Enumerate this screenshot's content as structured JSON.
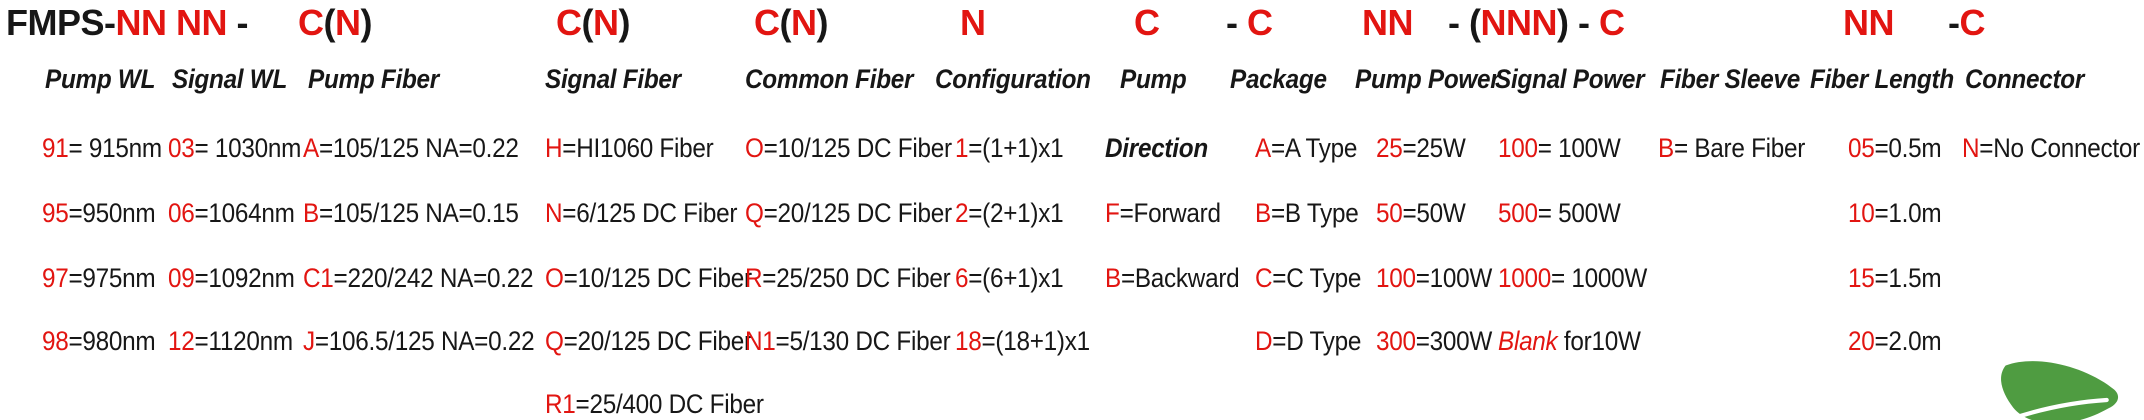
{
  "accent_red": "#e21511",
  "text_black": "#171717",
  "part_number_format": [
    {
      "name": "model-and-wavelengths",
      "parts": [
        {
          "text": "FMPS-",
          "red": false
        },
        {
          "text": "NN NN",
          "red": true
        },
        {
          "text": " - ",
          "red": false
        }
      ]
    },
    {
      "name": "pump-fiber-code",
      "parts": [
        {
          "text": "C",
          "red": true
        },
        {
          "text": "(",
          "red": false
        },
        {
          "text": "N",
          "red": true
        },
        {
          "text": ")",
          "red": false
        }
      ]
    },
    {
      "name": "signal-fiber-code",
      "parts": [
        {
          "text": "C",
          "red": true
        },
        {
          "text": "(",
          "red": false
        },
        {
          "text": "N",
          "red": true
        },
        {
          "text": ")",
          "red": false
        }
      ]
    },
    {
      "name": "common-fiber-code",
      "parts": [
        {
          "text": "C",
          "red": true
        },
        {
          "text": "(",
          "red": false
        },
        {
          "text": "N",
          "red": true
        },
        {
          "text": ")",
          "red": false
        }
      ]
    },
    {
      "name": "configuration-code",
      "parts": [
        {
          "text": "N",
          "red": true
        }
      ]
    },
    {
      "name": "pump-direction-code",
      "parts": [
        {
          "text": "C",
          "red": true
        }
      ]
    },
    {
      "name": "package-code",
      "parts": [
        {
          "text": "- ",
          "red": false
        },
        {
          "text": "C",
          "red": true
        }
      ]
    },
    {
      "name": "pump-power-code",
      "parts": [
        {
          "text": "NN",
          "red": true
        }
      ]
    },
    {
      "name": "signal-power-sleeve-code",
      "parts": [
        {
          "text": "- (",
          "red": false
        },
        {
          "text": "NNN",
          "red": true
        },
        {
          "text": ") - ",
          "red": false
        },
        {
          "text": "C",
          "red": true
        }
      ]
    },
    {
      "name": "fiber-length-code",
      "parts": [
        {
          "text": "NN",
          "red": true
        }
      ]
    },
    {
      "name": "connector-code",
      "parts": [
        {
          "text": "-",
          "red": false
        },
        {
          "text": "C",
          "red": true
        }
      ]
    }
  ],
  "columns": [
    {
      "id": "pump-wl",
      "label": "Pump WL",
      "items": [
        {
          "code": "91",
          "rest": "= 915nm"
        },
        {
          "code": "95",
          "rest": "=950nm"
        },
        {
          "code": "97",
          "rest": "=975nm"
        },
        {
          "code": "98",
          "rest": "=980nm"
        }
      ]
    },
    {
      "id": "signal-wl",
      "label": "Signal WL",
      "items": [
        {
          "code": "03",
          "rest": "= 1030nm"
        },
        {
          "code": "06",
          "rest": "=1064nm"
        },
        {
          "code": "09",
          "rest": "=1092nm"
        },
        {
          "code": "12",
          "rest": "=1120nm"
        }
      ]
    },
    {
      "id": "pump-fiber",
      "label": "Pump Fiber",
      "items": [
        {
          "code": "A",
          "rest": "=105/125 NA=0.22"
        },
        {
          "code": "B",
          "rest": "=105/125 NA=0.15"
        },
        {
          "code": "C1",
          "rest": "=220/242 NA=0.22"
        },
        {
          "code": "J",
          "rest": "=106.5/125 NA=0.22"
        }
      ]
    },
    {
      "id": "signal-fiber",
      "label": "Signal Fiber",
      "items": [
        {
          "code": "H",
          "rest": "=HI1060 Fiber"
        },
        {
          "code": "N",
          "rest": "=6/125 DC Fiber"
        },
        {
          "code": "O",
          "rest": "=10/125 DC Fiber"
        },
        {
          "code": "Q",
          "rest": "=20/125 DC Fiber"
        },
        {
          "code": "R1",
          "rest": "=25/400 DC Fiber"
        }
      ]
    },
    {
      "id": "common-fiber",
      "label": "Common Fiber",
      "items": [
        {
          "code": "O",
          "rest": "=10/125 DC Fiber"
        },
        {
          "code": "Q",
          "rest": "=20/125 DC Fiber"
        },
        {
          "code": "R",
          "rest": "=25/250 DC Fiber"
        },
        {
          "code": "N1",
          "rest": "=5/130 DC Fiber"
        }
      ]
    },
    {
      "id": "configuration",
      "label": "Configuration",
      "items": [
        {
          "code": "1",
          "rest": "=(1+1)x1"
        },
        {
          "code": "2",
          "rest": "=(2+1)x1"
        },
        {
          "code": "6",
          "rest": "=(6+1)x1"
        },
        {
          "code": "18",
          "rest": "=(18+1)x1"
        }
      ]
    },
    {
      "id": "pump-direction",
      "label": "Pump",
      "sublabel": "Direction",
      "items": [
        {
          "code": "F",
          "rest": "=Forward"
        },
        {
          "code": "B",
          "rest": "=Backward"
        }
      ]
    },
    {
      "id": "package",
      "label": "Package",
      "items": [
        {
          "code": "A",
          "rest": "=A Type"
        },
        {
          "code": "B",
          "rest": "=B Type"
        },
        {
          "code": "C",
          "rest": "=C Type"
        },
        {
          "code": "D",
          "rest": "=D Type"
        }
      ]
    },
    {
      "id": "pump-power",
      "label": "Pump Power",
      "items": [
        {
          "code": "25",
          "rest": "=25W"
        },
        {
          "code": "50",
          "rest": "=50W"
        },
        {
          "code": "100",
          "rest": "=100W"
        },
        {
          "code": "300",
          "rest": "=300W"
        }
      ]
    },
    {
      "id": "signal-power",
      "label": "Signal Power",
      "items": [
        {
          "code": "100",
          "rest": "= 100W"
        },
        {
          "code": "500",
          "rest": "= 500W"
        },
        {
          "code": "1000",
          "rest": "= 1000W"
        },
        {
          "code": "Blank",
          "rest": " for10W",
          "code_italic": true
        }
      ]
    },
    {
      "id": "fiber-sleeve",
      "label": "Fiber Sleeve",
      "items": [
        {
          "code": "B",
          "rest": "= Bare Fiber"
        }
      ]
    },
    {
      "id": "fiber-length",
      "label": "Fiber Length",
      "items": [
        {
          "code": "05",
          "rest": "=0.5m"
        },
        {
          "code": "10",
          "rest": "=1.0m"
        },
        {
          "code": "15",
          "rest": "=1.5m"
        },
        {
          "code": "20",
          "rest": "=2.0m"
        }
      ]
    },
    {
      "id": "connector",
      "label": "Connector",
      "items": [
        {
          "code": "N",
          "rest": "=No Connector"
        }
      ]
    }
  ],
  "logo": {
    "color": "#4f9c41",
    "vein_color": "#ffffff"
  }
}
